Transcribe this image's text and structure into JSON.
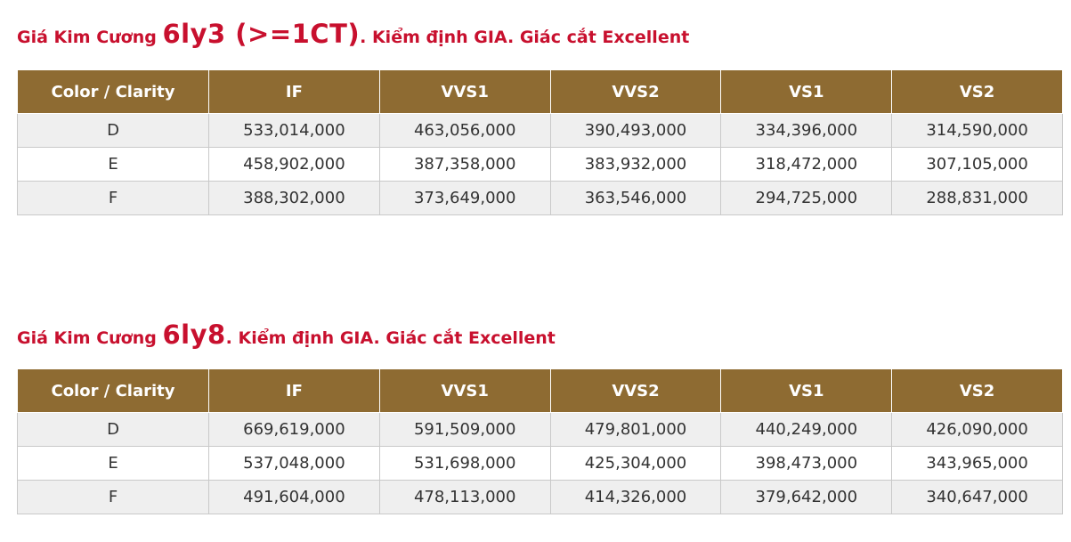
{
  "sections": [
    {
      "heading_pre": "Giá Kim Cương ",
      "heading_big": "6ly3 (>=1CT)",
      "heading_post": ". Kiểm định GIA. Giác cắt Excellent",
      "columns": [
        "Color / Clarity",
        "IF",
        "VVS1",
        "VVS2",
        "VS1",
        "VS2"
      ],
      "rows": [
        [
          "D",
          "533,014,000",
          "463,056,000",
          "390,493,000",
          "334,396,000",
          "314,590,000"
        ],
        [
          "E",
          "458,902,000",
          "387,358,000",
          "383,932,000",
          "318,472,000",
          "307,105,000"
        ],
        [
          "F",
          "388,302,000",
          "373,649,000",
          "363,546,000",
          "294,725,000",
          "288,831,000"
        ]
      ]
    },
    {
      "heading_pre": "Giá Kim Cương ",
      "heading_big": "6ly8",
      "heading_post": ". Kiểm định GIA. Giác cắt Excellent",
      "columns": [
        "Color / Clarity",
        "IF",
        "VVS1",
        "VVS2",
        "VS1",
        "VS2"
      ],
      "rows": [
        [
          "D",
          "669,619,000",
          "591,509,000",
          "479,801,000",
          "440,249,000",
          "426,090,000"
        ],
        [
          "E",
          "537,048,000",
          "531,698,000",
          "425,304,000",
          "398,473,000",
          "343,965,000"
        ],
        [
          "F",
          "491,604,000",
          "478,113,000",
          "414,326,000",
          "379,642,000",
          "340,647,000"
        ]
      ]
    }
  ],
  "colors": {
    "heading": "#c8102e",
    "header_bg": "#8e6b32",
    "header_text": "#ffffff",
    "row_alt_bg": "#efefef"
  }
}
